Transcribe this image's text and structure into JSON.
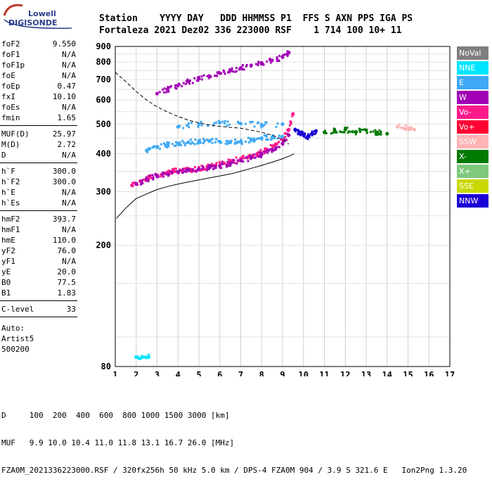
{
  "logo": {
    "line1": "Lowell",
    "line2": "DIGISONDE"
  },
  "header": {
    "row1": "Station    YYYY DAY   DDD HHMMSS P1  FFS S AXN PPS IGA PS",
    "row2": "Fortaleza 2021 Dez02 336 223000 RSF    1 714 100 10+ 11"
  },
  "params": {
    "group1": [
      {
        "label": "foF2",
        "value": "9.550"
      },
      {
        "label": "foF1",
        "value": "N/A"
      },
      {
        "label": "foF1p",
        "value": "N/A"
      },
      {
        "label": "foE",
        "value": "N/A"
      },
      {
        "label": "foEp",
        "value": "0.47"
      },
      {
        "label": "fxI",
        "value": "10.10"
      },
      {
        "label": "foEs",
        "value": "N/A"
      },
      {
        "label": "fmin",
        "value": "1.65"
      }
    ],
    "group2": [
      {
        "label": "MUF(D)",
        "value": "25.97"
      },
      {
        "label": "M(D)",
        "value": "2.72"
      },
      {
        "label": "D",
        "value": "N/A"
      }
    ],
    "group3": [
      {
        "label": "h`F",
        "value": "300.0"
      },
      {
        "label": "h`F2",
        "value": "300.0"
      },
      {
        "label": "h`E",
        "value": "N/A"
      },
      {
        "label": "h`Es",
        "value": "N/A"
      }
    ],
    "group4": [
      {
        "label": "hmF2",
        "value": "393.7"
      },
      {
        "label": "hmF1",
        "value": "N/A"
      },
      {
        "label": "hmE",
        "value": "110.0"
      },
      {
        "label": "yF2",
        "value": "76.0"
      },
      {
        "label": "yF1",
        "value": "N/A"
      },
      {
        "label": "yE",
        "value": "20.0"
      },
      {
        "label": "B0",
        "value": "77.5"
      },
      {
        "label": "B1",
        "value": "1.83"
      }
    ],
    "group5": [
      {
        "label": "C-level",
        "value": "33"
      }
    ]
  },
  "autoscale": {
    "line1": "Auto:",
    "line2": "Artist5",
    "line3": "500200"
  },
  "legend": [
    {
      "label": "NoVal",
      "color": "#7f7f7f"
    },
    {
      "label": "NNE",
      "color": "#00e5ff"
    },
    {
      "label": "E",
      "color": "#3fa9f5"
    },
    {
      "label": "W",
      "color": "#a100b5"
    },
    {
      "label": "Vo-",
      "color": "#ff1a8c"
    },
    {
      "label": "Vo+",
      "color": "#ff0033"
    },
    {
      "label": "SSW",
      "color": "#ffb3b3"
    },
    {
      "label": "X-",
      "color": "#007a00"
    },
    {
      "label": "X+",
      "color": "#7fc97f"
    },
    {
      "label": "SSE",
      "color": "#c8d800"
    },
    {
      "label": "NNW",
      "color": "#1a00d6"
    }
  ],
  "footer": {
    "line1": "D     100  200  400  600  800 1000 1500 3000 [km]",
    "line2": "MUF   9.9 10.0 10.4 11.0 11.8 13.1 16.7 26.0 [MHz]",
    "line3": "FZA0M_2021336223000.RSF / 320fx256h 50 kHz 5.0 km / DPS-4 FZA0M 904 / 3.9 S 321.6 E   Ion2Png 1.3.20"
  },
  "chart_data": {
    "type": "scatter",
    "xlim": [
      1,
      17
    ],
    "ylim": [
      80,
      900
    ],
    "x_scale": "linear",
    "y_scale": "log",
    "x_ticks": [
      1,
      2,
      3,
      4,
      5,
      6,
      7,
      8,
      9,
      10,
      11,
      12,
      13,
      14,
      15,
      16,
      17
    ],
    "y_ticks": [
      80,
      200,
      300,
      400,
      500,
      600,
      700,
      800,
      900
    ],
    "grid": true,
    "echo_traces": [
      {
        "name": "Vo-",
        "color": "#ff1a8c",
        "x": [
          1.8,
          2.2,
          2.6,
          3.0,
          3.4,
          3.8,
          4.2,
          4.6,
          5.0,
          5.4,
          5.8,
          6.2,
          6.6,
          7.0,
          7.4,
          7.8,
          8.2,
          8.6,
          9.0,
          9.3,
          9.5
        ],
        "y": [
          315,
          325,
          332,
          340,
          345,
          350,
          352,
          355,
          358,
          362,
          366,
          372,
          378,
          385,
          392,
          400,
          410,
          425,
          445,
          480,
          540
        ]
      },
      {
        "name": "W",
        "color": "#a100b5",
        "x": [
          2.0,
          2.5,
          3.0,
          3.5,
          4.0,
          4.5,
          5.0,
          5.5,
          6.0,
          6.5,
          7.0,
          7.5,
          8.0,
          8.5,
          9.0,
          9.3
        ],
        "y": [
          318,
          330,
          338,
          343,
          348,
          353,
          356,
          360,
          365,
          372,
          380,
          388,
          398,
          412,
          432,
          460
        ]
      },
      {
        "name": "E",
        "color": "#3fa9f5",
        "x": [
          2.5,
          3.0,
          3.5,
          4.0,
          4.5,
          5.0,
          5.5,
          6.0,
          6.5,
          7.0,
          7.5,
          8.0,
          8.5,
          9.0
        ],
        "y": [
          410,
          420,
          428,
          432,
          436,
          440,
          440,
          438,
          436,
          438,
          445,
          450,
          452,
          455
        ]
      },
      {
        "name": "E (upper)",
        "color": "#3fa9f5",
        "x": [
          4.0,
          5.0,
          6.0,
          7.0,
          8.0,
          9.0
        ],
        "y": [
          490,
          500,
          505,
          502,
          498,
          500
        ]
      },
      {
        "name": "F2 second hop",
        "color": "#a100b5",
        "x": [
          3.0,
          3.5,
          4.0,
          4.5,
          5.0,
          5.5,
          6.0,
          6.5,
          7.0,
          7.5,
          8.0,
          8.5,
          9.0,
          9.3
        ],
        "y": [
          630,
          650,
          670,
          690,
          705,
          720,
          735,
          750,
          765,
          780,
          795,
          810,
          830,
          860
        ]
      },
      {
        "name": "NNW",
        "color": "#1a00d6",
        "x": [
          9.6,
          9.8,
          10.0,
          10.2,
          10.4,
          10.6
        ],
        "y": [
          480,
          470,
          460,
          455,
          465,
          475
        ]
      },
      {
        "name": "X-",
        "color": "#007a00",
        "x": [
          11.0,
          11.5,
          12.0,
          12.5,
          13.0,
          13.5,
          14.0
        ],
        "y": [
          470,
          475,
          480,
          472,
          478,
          470,
          465
        ]
      },
      {
        "name": "SSW",
        "color": "#ffb3b3",
        "x": [
          14.5,
          15.0,
          15.3
        ],
        "y": [
          490,
          485,
          480
        ]
      },
      {
        "name": "NNE",
        "color": "#00e5ff",
        "x": [
          2.0,
          2.3,
          2.6
        ],
        "y": [
          86,
          86,
          86
        ]
      }
    ],
    "profile_lines": [
      {
        "name": "ionogram profile",
        "style": "solid",
        "x": [
          1.05,
          1.5,
          2.0,
          2.5,
          3.0,
          3.5,
          4.0,
          4.5,
          5.0,
          5.5,
          6.0,
          6.5,
          7.0,
          7.5,
          8.0,
          8.5,
          9.0,
          9.4,
          9.55
        ],
        "y": [
          245,
          265,
          285,
          295,
          305,
          312,
          318,
          323,
          328,
          333,
          338,
          343,
          350,
          358,
          366,
          375,
          385,
          395,
          400
        ]
      },
      {
        "name": "dashed curve",
        "style": "dashed",
        "x": [
          1.0,
          1.5,
          2.0,
          2.5,
          3.0,
          3.5,
          4.0,
          4.5,
          5.0,
          5.5,
          6.0,
          6.5,
          7.0,
          7.5,
          8.0,
          8.5,
          9.0,
          9.3
        ],
        "y": [
          740,
          690,
          640,
          600,
          570,
          548,
          530,
          515,
          505,
          497,
          492,
          488,
          485,
          478,
          470,
          460,
          445,
          430
        ]
      }
    ]
  }
}
